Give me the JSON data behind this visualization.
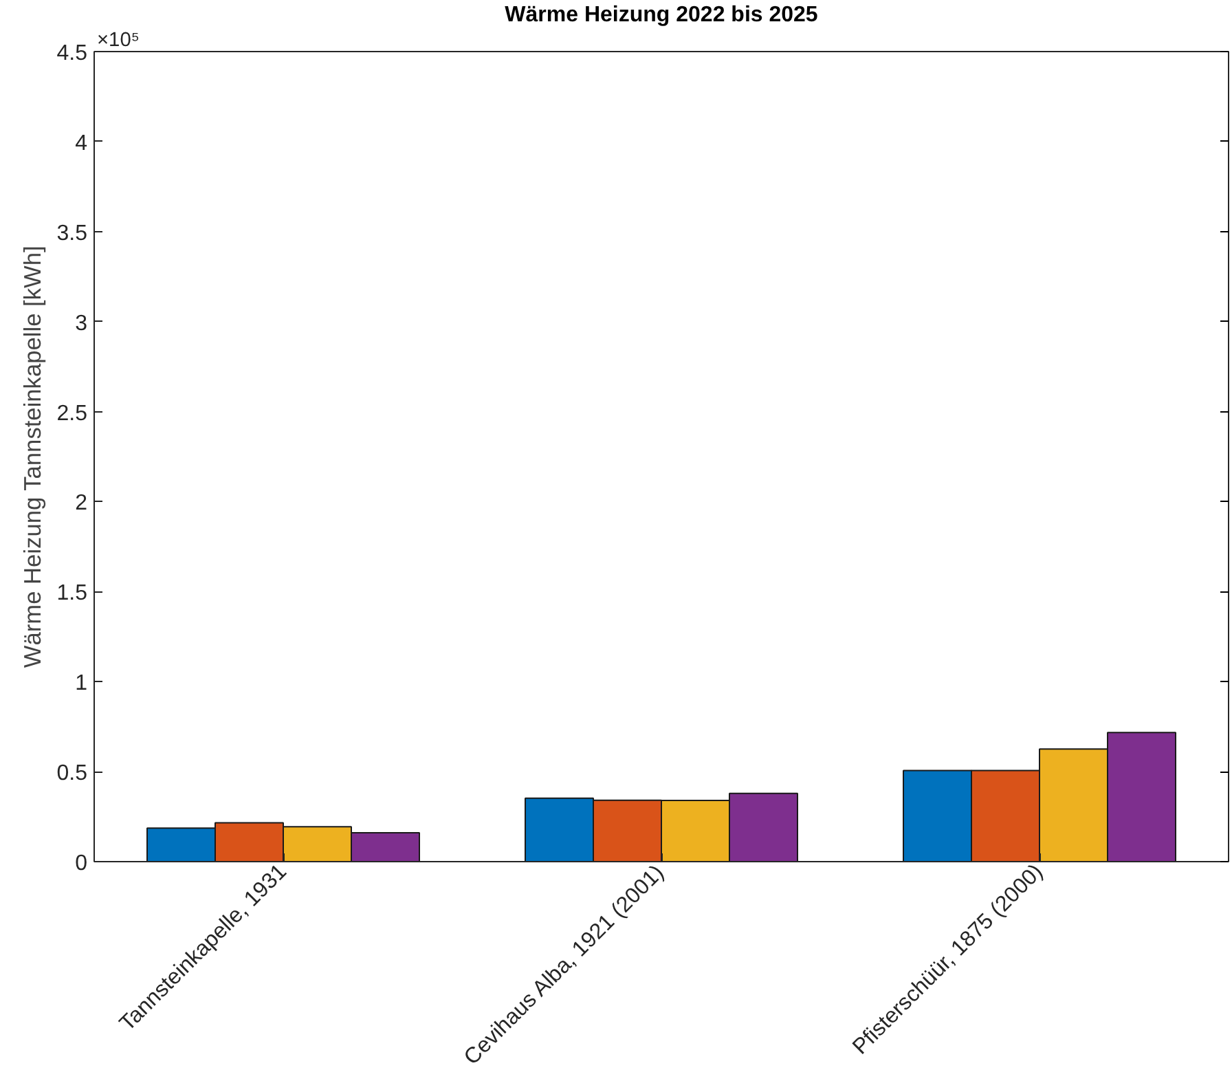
{
  "chart_data": {
    "type": "bar",
    "title": "Wärme Heizung 2022 bis 2025",
    "ylabel": "Wärme Heizung Tannsteinkapelle [kWh]",
    "categories": [
      "Tannsteinkapelle, 1931",
      "Cevihaus Alba, 1921 (2001)",
      "Pfisterschüür, 1875 (2000)"
    ],
    "series": [
      {
        "color": "#0072bd",
        "values": [
          0.186,
          0.352,
          0.506
        ]
      },
      {
        "color": "#d95319",
        "values": [
          0.216,
          0.341,
          0.506
        ]
      },
      {
        "color": "#edb120",
        "values": [
          0.194,
          0.34,
          0.626
        ]
      },
      {
        "color": "#7e2f8e",
        "values": [
          0.16,
          0.379,
          0.717
        ]
      }
    ],
    "ylim": [
      0,
      4.5
    ],
    "yticks": [
      0,
      0.5,
      1,
      1.5,
      2,
      2.5,
      3,
      3.5,
      4,
      4.5
    ],
    "annotations": [
      "×10⁵"
    ],
    "grid": false
  }
}
